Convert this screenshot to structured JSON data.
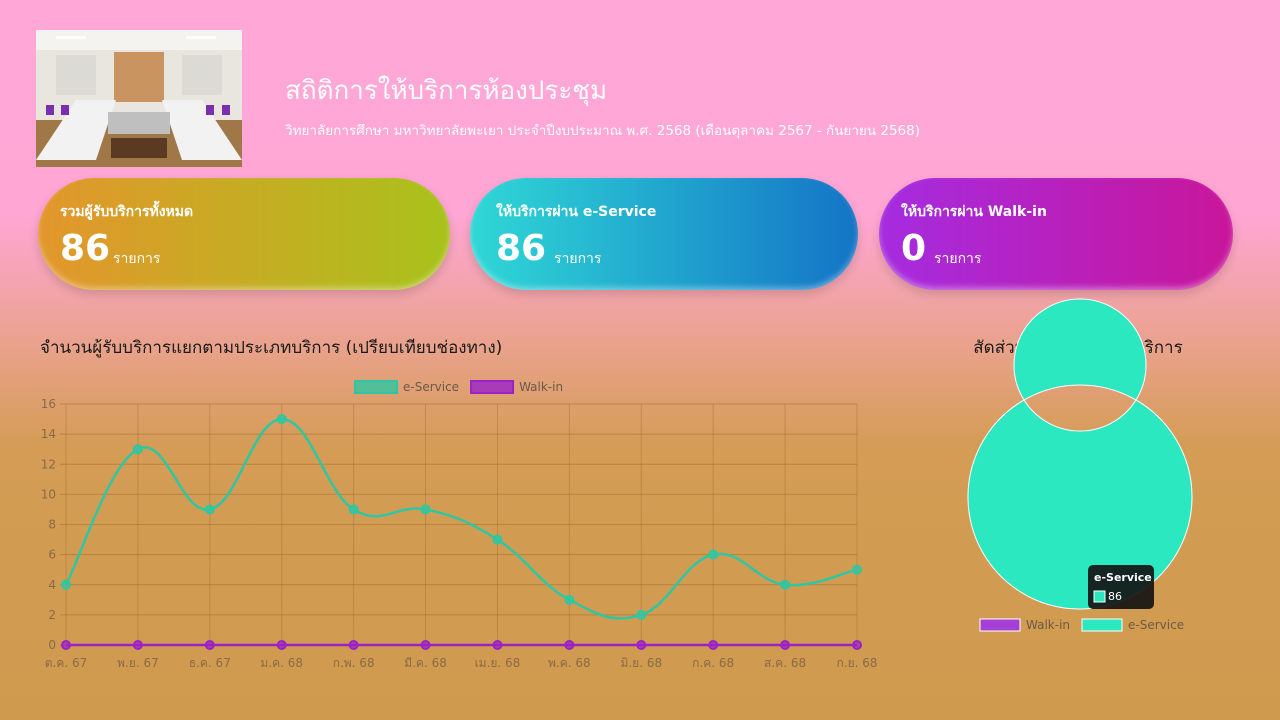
{
  "header": {
    "title": "สถิติการให้บริการห้องประชุม",
    "subtitle": "วิทยาลัยการศึกษา มหาวิทยาลัยพะเยา ประจำปีงบประมาณ พ.ศ. 2568 (เดือนตุลาคม 2567 - กันยายน 2568)"
  },
  "cards": [
    {
      "title": "รวมผู้รับบริการทั้งหมด",
      "value": 86,
      "unit": "รายการ"
    },
    {
      "title": "ให้บริการผ่าน e-Service",
      "value": 86,
      "unit": "รายการ"
    },
    {
      "title": "ให้บริการผ่าน Walk-in",
      "value": 0,
      "unit": "รายการ"
    }
  ],
  "chart_data": [
    {
      "type": "line",
      "title": "จำนวนผู้รับบริการแยกตามประเภทบริการ (เปรียบเทียบช่องทาง)",
      "categories": [
        "ต.ค. 67",
        "พ.ย. 67",
        "ธ.ค. 67",
        "ม.ค. 68",
        "ก.พ. 68",
        "มี.ค. 68",
        "เม.ย. 68",
        "พ.ค. 68",
        "มิ.ย. 68",
        "ก.ค. 68",
        "ส.ค. 68",
        "ก.ย. 68"
      ],
      "series": [
        {
          "name": "e-Service",
          "color": "#2ec7a3",
          "values": [
            4,
            13,
            9,
            15,
            9,
            9,
            7,
            3,
            2,
            6,
            4,
            5
          ]
        },
        {
          "name": "Walk-in",
          "color": "#9a22c8",
          "values": [
            0,
            0,
            0,
            0,
            0,
            0,
            0,
            0,
            0,
            0,
            0,
            0
          ]
        }
      ],
      "ylim": [
        0,
        16
      ],
      "yticks": [
        0,
        2,
        4,
        6,
        8,
        10,
        12,
        14,
        16
      ],
      "grid": true,
      "legend": "top"
    },
    {
      "type": "doughnut",
      "title": "สัดส่วนช่องทางการให้บริการ",
      "categories": [
        "Walk-in",
        "e-Service"
      ],
      "values": [
        0,
        86
      ],
      "colors": [
        "#a63fd6",
        "#2ce8c0"
      ],
      "legend": "bottom"
    }
  ]
}
